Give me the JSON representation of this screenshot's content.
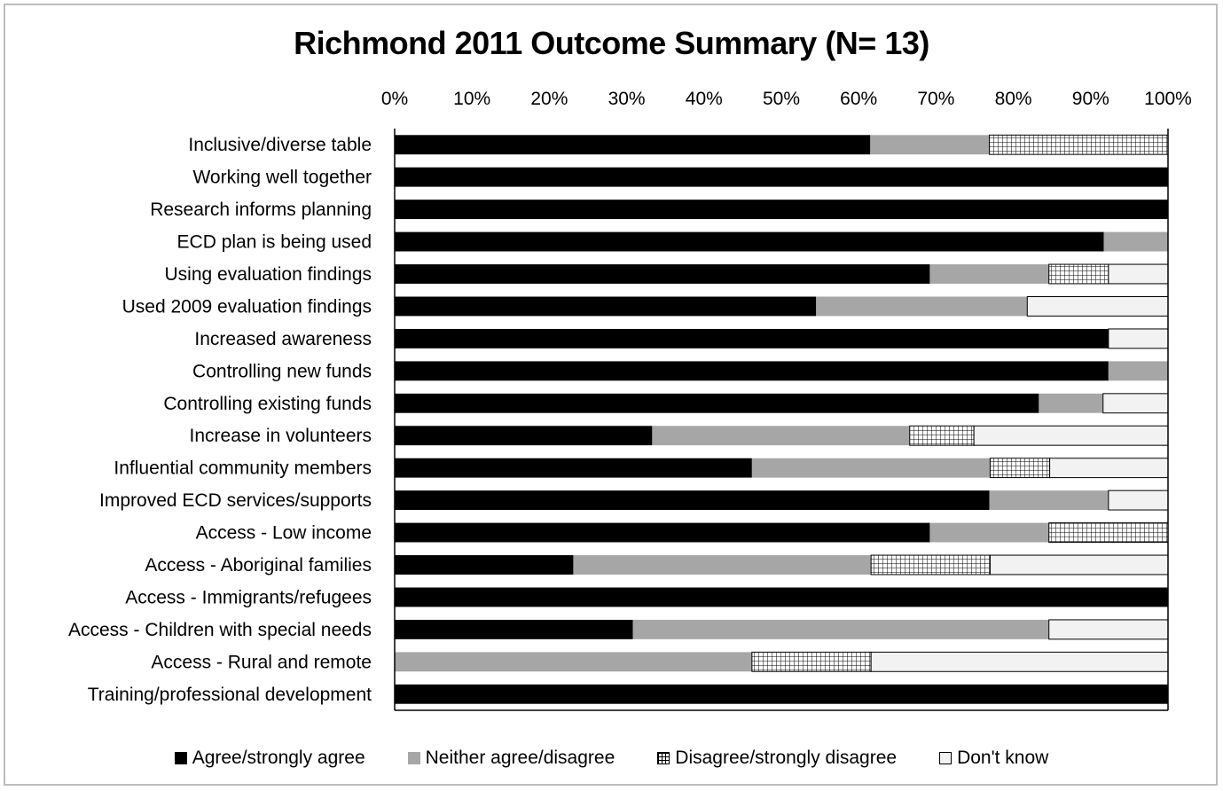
{
  "chart_data": {
    "type": "bar",
    "orientation": "horizontal",
    "stacked": "percent",
    "title": "Richmond 2011 Outcome Summary (N= 13)",
    "xlim": [
      0,
      100
    ],
    "x_ticks": [
      "0%",
      "10%",
      "20%",
      "30%",
      "40%",
      "50%",
      "60%",
      "70%",
      "80%",
      "90%",
      "100%"
    ],
    "legend_position": "bottom",
    "categories": [
      "Inclusive/diverse table",
      "Working well together",
      "Research informs planning",
      "ECD plan is being used",
      "Using evaluation findings",
      "Used 2009 evaluation findings",
      "Increased awareness",
      "Controlling new funds",
      "Controlling existing funds",
      "Increase in volunteers",
      "Influential community members",
      "Improved ECD services/supports",
      "Access - Low income",
      "Access - Aboriginal families",
      "Access  - Immigrants/refugees",
      "Access - Children with special needs",
      "Access - Rural and remote",
      "Training/professional development"
    ],
    "series": [
      {
        "name": "Agree/strongly agree",
        "color": "#000000",
        "values": [
          61.5,
          100,
          100,
          91.7,
          69.2,
          54.5,
          92.3,
          92.3,
          83.3,
          33.3,
          46.2,
          76.9,
          69.2,
          23.1,
          100,
          30.8,
          0,
          100
        ]
      },
      {
        "name": "Neither agree/disagree",
        "color": "#a6a6a6",
        "values": [
          15.4,
          0,
          0,
          8.3,
          15.4,
          27.3,
          0,
          7.7,
          8.3,
          33.3,
          30.8,
          15.4,
          15.4,
          38.5,
          0,
          53.8,
          46.2,
          0
        ]
      },
      {
        "name": "Disagree/strongly disagree",
        "color": "#ffffff",
        "pattern": "grid",
        "values": [
          23.1,
          0,
          0,
          0,
          7.7,
          0,
          0,
          0,
          0,
          8.3,
          7.7,
          0,
          15.4,
          15.4,
          0,
          0,
          15.4,
          0
        ]
      },
      {
        "name": "Don't know",
        "color": "#f2f2f2",
        "values": [
          0,
          0,
          0,
          0,
          7.7,
          18.2,
          7.7,
          0,
          8.4,
          25.1,
          15.3,
          7.7,
          0,
          23,
          0,
          15.4,
          38.4,
          0
        ]
      }
    ]
  }
}
